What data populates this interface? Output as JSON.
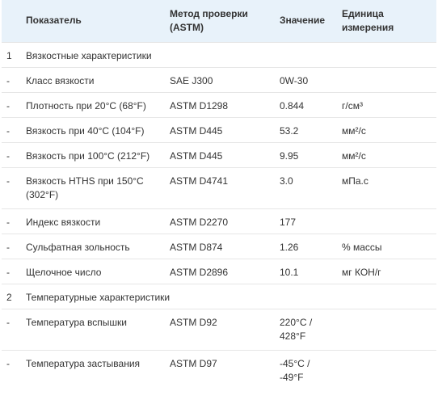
{
  "table": {
    "headers": {
      "parameter": "Показатель",
      "method": "Метод проверки (ASTM)",
      "value": "Значение",
      "unit": "Единица измерения"
    },
    "sections": [
      {
        "number": "1",
        "title": "Вязкостные характеристики",
        "rows": [
          {
            "marker": "-",
            "parameter": "Класс вязкости",
            "method": "SAE J300",
            "value": "0W-30",
            "unit": ""
          },
          {
            "marker": "-",
            "parameter": "Плотность при 20°C (68°F)",
            "method": "ASTM D1298",
            "value": "0.844",
            "unit": "г/см³"
          },
          {
            "marker": "-",
            "parameter": "Вязкость при 40°C (104°F)",
            "method": "ASTM D445",
            "value": "53.2",
            "unit": "мм²/с"
          },
          {
            "marker": "-",
            "parameter": "Вязкость при 100°C (212°F)",
            "method": "ASTM D445",
            "value": "9.95",
            "unit": "мм²/с"
          },
          {
            "marker": "-",
            "parameter": "Вязкость HTHS при 150°C (302°F)",
            "method": "ASTM D4741",
            "value": "3.0",
            "unit": "мПа.с"
          },
          {
            "marker": "-",
            "parameter": "Индекс вязкости",
            "method": "ASTM D2270",
            "value": "177",
            "unit": ""
          },
          {
            "marker": "-",
            "parameter": "Сульфатная зольность",
            "method": "ASTM D874",
            "value": "1.26",
            "unit": "% массы"
          },
          {
            "marker": "-",
            "parameter": "Щелочное число",
            "method": "ASTM D2896",
            "value": "10.1",
            "unit": "мг КОН/г"
          }
        ]
      },
      {
        "number": "2",
        "title": "Температурные характеристики",
        "rows": [
          {
            "marker": "-",
            "parameter": "Температура вспышки",
            "method": "ASTM D92",
            "value": "220°C / 428°F",
            "unit": ""
          },
          {
            "marker": "-",
            "parameter": "Температура застывания",
            "method": "ASTM D97",
            "value": "-45°C / -49°F",
            "unit": ""
          }
        ]
      }
    ]
  }
}
